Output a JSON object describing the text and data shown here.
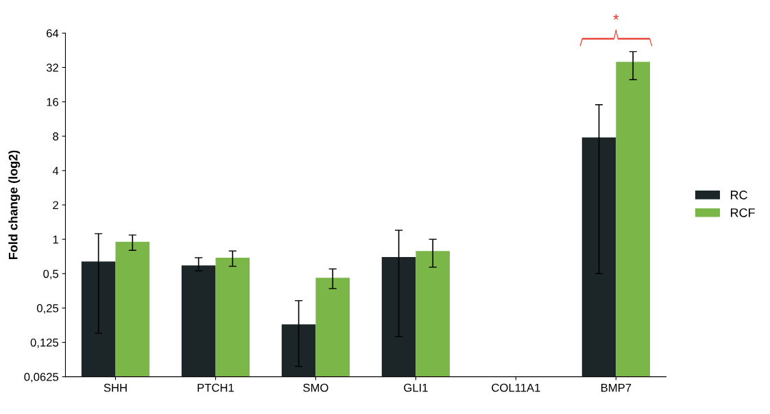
{
  "chart_data": {
    "type": "bar",
    "ylabel": "Fold change (log2)",
    "categories": [
      "SHH",
      "PTCH1",
      "SMO",
      "GLI1",
      "COL11A1",
      "BMP7"
    ],
    "series": [
      {
        "name": "RC",
        "color": "#1c2628",
        "values": [
          0.64,
          0.59,
          0.18,
          0.7,
          null,
          7.8
        ],
        "errors": [
          [
            0.15,
            1.12
          ],
          [
            0.53,
            0.69
          ],
          [
            0.077,
            0.29
          ],
          [
            0.14,
            1.2
          ],
          null,
          [
            0.5,
            15.1
          ]
        ]
      },
      {
        "name": "RCF",
        "color": "#7ab648",
        "values": [
          0.95,
          0.69,
          0.46,
          0.79,
          null,
          35.8
        ],
        "errors": [
          [
            0.8,
            1.09
          ],
          [
            0.58,
            0.79
          ],
          [
            0.37,
            0.55
          ],
          [
            0.57,
            1.0
          ],
          null,
          [
            25,
            44
          ]
        ]
      }
    ],
    "log": "y",
    "ylim": [
      0.0625,
      64
    ],
    "yticks": [
      {
        "value": 0.0625,
        "label": "0,0625"
      },
      {
        "value": 0.125,
        "label": "0,125"
      },
      {
        "value": 0.25,
        "label": "0,25"
      },
      {
        "value": 0.5,
        "label": "0,5"
      },
      1,
      2,
      4,
      8,
      16,
      32,
      64
    ],
    "annotations": [
      "*"
    ],
    "grid": false,
    "legend": "right"
  }
}
